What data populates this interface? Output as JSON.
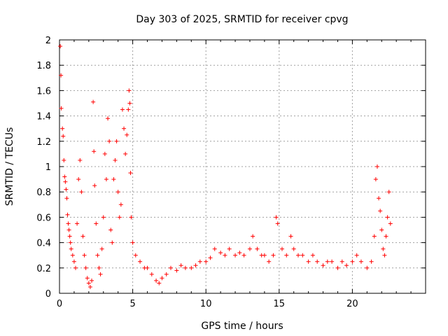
{
  "chart_data": {
    "type": "scatter",
    "title": "Day 303 of 2025, SRMTID for receiver cpvg",
    "xlabel": "GPS time / hours",
    "ylabel": "SRMTID / TECUs",
    "xlim": [
      0,
      25
    ],
    "ylim": [
      0,
      2
    ],
    "xticks": [
      0,
      5,
      10,
      15,
      20
    ],
    "xtick_labels": [
      "0",
      "5",
      "10",
      "15",
      "20"
    ],
    "yticks": [
      0,
      0.2,
      0.4,
      0.6,
      0.8,
      1,
      1.2,
      1.4,
      1.6,
      1.8,
      2
    ],
    "ytick_labels": [
      "0",
      "0.2",
      "0.4",
      "0.6",
      "0.8",
      "1",
      "1.2",
      "1.4",
      "1.6",
      "1.8",
      "2"
    ],
    "grid": true,
    "marker": "+",
    "color": "#ff0000",
    "series": [
      {
        "name": "SRMTID",
        "points": [
          [
            0.05,
            1.95
          ],
          [
            0.1,
            1.72
          ],
          [
            0.12,
            1.46
          ],
          [
            0.2,
            1.3
          ],
          [
            0.25,
            1.24
          ],
          [
            0.3,
            1.05
          ],
          [
            0.35,
            0.92
          ],
          [
            0.4,
            0.88
          ],
          [
            0.45,
            0.82
          ],
          [
            0.5,
            0.75
          ],
          [
            0.55,
            0.62
          ],
          [
            0.6,
            0.55
          ],
          [
            0.65,
            0.5
          ],
          [
            0.7,
            0.45
          ],
          [
            0.75,
            0.4
          ],
          [
            0.8,
            0.35
          ],
          [
            0.9,
            0.3
          ],
          [
            1.0,
            0.25
          ],
          [
            1.1,
            0.2
          ],
          [
            1.2,
            0.55
          ],
          [
            1.3,
            0.9
          ],
          [
            1.4,
            1.05
          ],
          [
            1.5,
            0.8
          ],
          [
            1.6,
            0.45
          ],
          [
            1.7,
            0.3
          ],
          [
            1.8,
            0.2
          ],
          [
            1.9,
            0.12
          ],
          [
            2.0,
            0.08
          ],
          [
            2.1,
            0.05
          ],
          [
            2.2,
            0.1
          ],
          [
            2.3,
            1.51
          ],
          [
            2.35,
            1.12
          ],
          [
            2.4,
            0.85
          ],
          [
            2.5,
            0.55
          ],
          [
            2.6,
            0.3
          ],
          [
            2.7,
            0.2
          ],
          [
            2.8,
            0.15
          ],
          [
            2.9,
            0.35
          ],
          [
            3.0,
            0.6
          ],
          [
            3.1,
            1.1
          ],
          [
            3.2,
            0.9
          ],
          [
            3.3,
            1.38
          ],
          [
            3.4,
            1.2
          ],
          [
            3.5,
            0.5
          ],
          [
            3.6,
            0.4
          ],
          [
            3.7,
            0.9
          ],
          [
            3.8,
            1.05
          ],
          [
            3.9,
            1.2
          ],
          [
            4.0,
            0.8
          ],
          [
            4.1,
            0.6
          ],
          [
            4.2,
            0.7
          ],
          [
            4.3,
            1.45
          ],
          [
            4.4,
            1.3
          ],
          [
            4.5,
            1.1
          ],
          [
            4.6,
            1.25
          ],
          [
            4.7,
            1.45
          ],
          [
            4.75,
            1.6
          ],
          [
            4.8,
            1.5
          ],
          [
            4.85,
            0.95
          ],
          [
            4.9,
            0.6
          ],
          [
            5.0,
            0.4
          ],
          [
            5.2,
            0.3
          ],
          [
            5.5,
            0.25
          ],
          [
            5.8,
            0.2
          ],
          [
            6.0,
            0.2
          ],
          [
            6.3,
            0.15
          ],
          [
            6.6,
            0.1
          ],
          [
            6.8,
            0.08
          ],
          [
            7.0,
            0.12
          ],
          [
            7.3,
            0.15
          ],
          [
            7.6,
            0.2
          ],
          [
            8.0,
            0.18
          ],
          [
            8.3,
            0.22
          ],
          [
            8.6,
            0.2
          ],
          [
            9.0,
            0.2
          ],
          [
            9.3,
            0.22
          ],
          [
            9.6,
            0.25
          ],
          [
            10.0,
            0.25
          ],
          [
            10.3,
            0.28
          ],
          [
            10.6,
            0.35
          ],
          [
            11.0,
            0.32
          ],
          [
            11.3,
            0.3
          ],
          [
            11.6,
            0.35
          ],
          [
            12.0,
            0.3
          ],
          [
            12.3,
            0.32
          ],
          [
            12.6,
            0.3
          ],
          [
            13.0,
            0.35
          ],
          [
            13.2,
            0.45
          ],
          [
            13.5,
            0.35
          ],
          [
            13.8,
            0.3
          ],
          [
            14.0,
            0.3
          ],
          [
            14.3,
            0.25
          ],
          [
            14.6,
            0.3
          ],
          [
            14.8,
            0.6
          ],
          [
            14.9,
            0.55
          ],
          [
            15.2,
            0.35
          ],
          [
            15.5,
            0.3
          ],
          [
            15.8,
            0.45
          ],
          [
            16.0,
            0.35
          ],
          [
            16.3,
            0.3
          ],
          [
            16.6,
            0.3
          ],
          [
            17.0,
            0.25
          ],
          [
            17.3,
            0.3
          ],
          [
            17.6,
            0.25
          ],
          [
            18.0,
            0.22
          ],
          [
            18.3,
            0.25
          ],
          [
            18.6,
            0.25
          ],
          [
            19.0,
            0.2
          ],
          [
            19.3,
            0.25
          ],
          [
            19.6,
            0.22
          ],
          [
            20.0,
            0.25
          ],
          [
            20.3,
            0.3
          ],
          [
            20.6,
            0.25
          ],
          [
            21.0,
            0.2
          ],
          [
            21.3,
            0.25
          ],
          [
            21.5,
            0.45
          ],
          [
            21.6,
            0.9
          ],
          [
            21.7,
            1.0
          ],
          [
            21.8,
            0.75
          ],
          [
            21.9,
            0.65
          ],
          [
            22.0,
            0.5
          ],
          [
            22.1,
            0.35
          ],
          [
            22.2,
            0.3
          ],
          [
            22.3,
            0.45
          ],
          [
            22.4,
            0.6
          ],
          [
            22.5,
            0.8
          ],
          [
            22.6,
            0.55
          ]
        ]
      }
    ]
  }
}
